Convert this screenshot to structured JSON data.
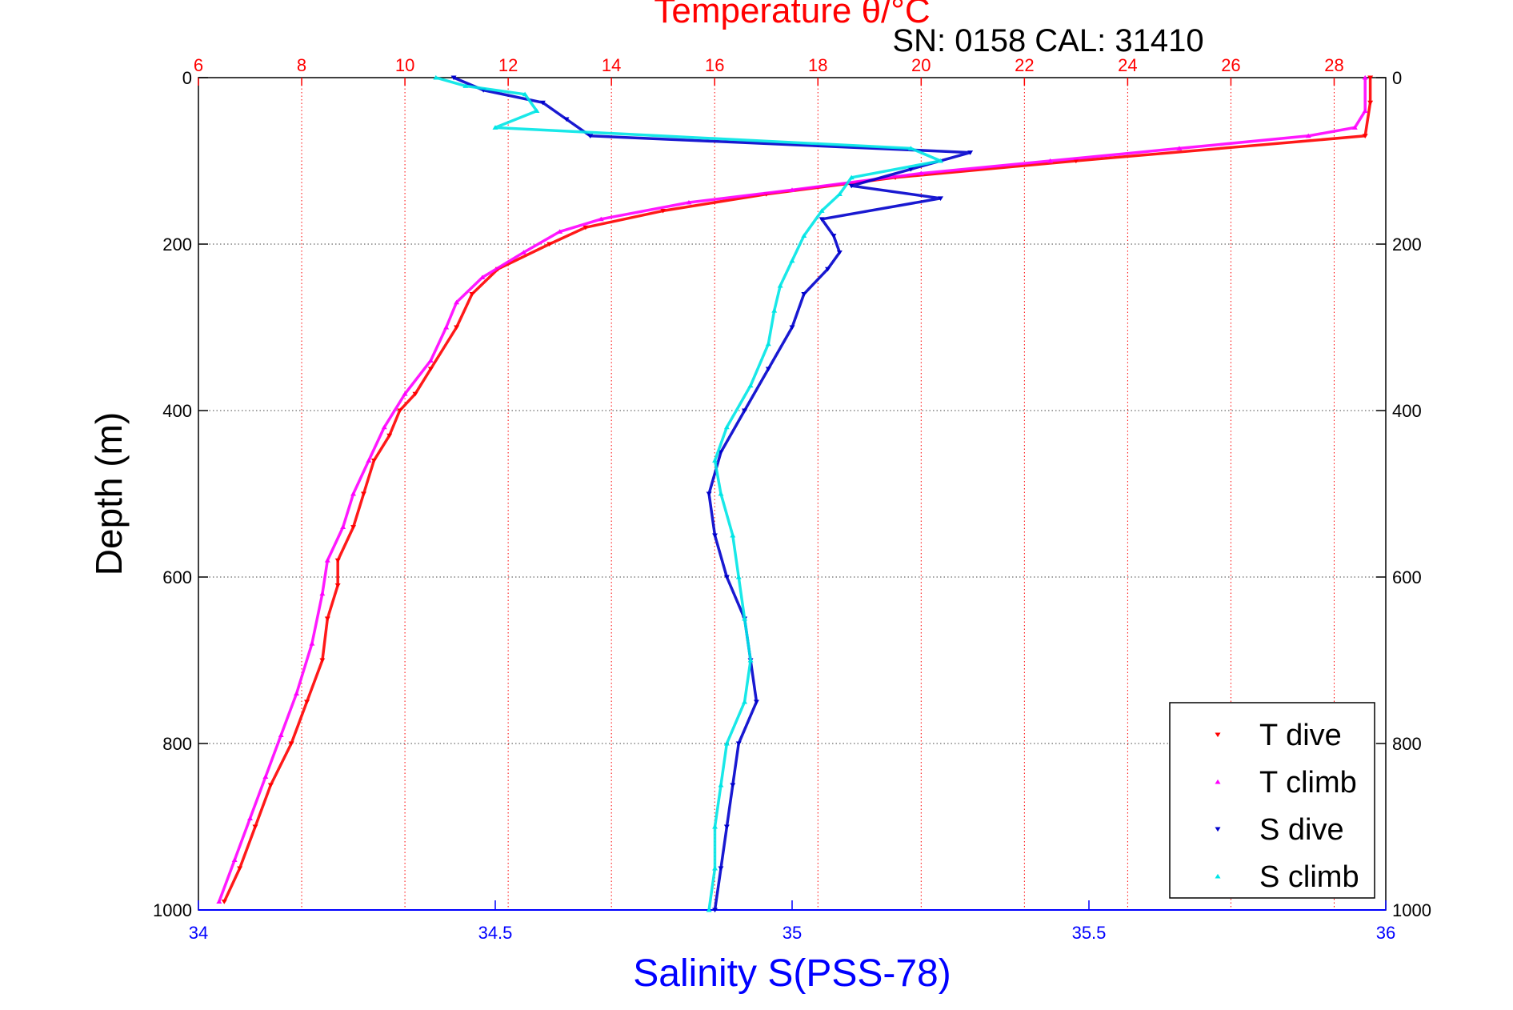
{
  "chart_data": {
    "type": "scatter",
    "title": "Temperature θ/°C",
    "annotation": "SN: 0158  CAL: 31410",
    "ylabel": "Depth (m)",
    "xlabel_bottom": "Salinity S(PSS-78)",
    "xlabel_top": "Temperature θ/°C",
    "ylim": [
      0,
      1000
    ],
    "y_reversed": true,
    "yticks": [
      0,
      200,
      400,
      600,
      800,
      1000
    ],
    "xlim_top": [
      6,
      29
    ],
    "xticks_top": [
      6,
      8,
      10,
      12,
      14,
      16,
      18,
      20,
      22,
      24,
      26,
      28
    ],
    "xlim_bottom": [
      34,
      36
    ],
    "xticks_bottom": [
      34,
      34.5,
      35,
      35.5,
      36
    ],
    "xtick_labels_bottom": [
      "34",
      "34.5",
      "35",
      "35.5",
      "36"
    ],
    "grid": true,
    "legend_position": "bottom-right",
    "colors": {
      "t_axis": "#ff0000",
      "s_axis": "#0000ff",
      "grid": "#444444"
    },
    "series": [
      {
        "name": "T dive",
        "axis": "top",
        "color": "#ff0000",
        "marker": "triangle-down",
        "points": [
          [
            28.7,
            0
          ],
          [
            28.7,
            30
          ],
          [
            28.6,
            70
          ],
          [
            23.0,
            100
          ],
          [
            19.5,
            120
          ],
          [
            17.0,
            140
          ],
          [
            15.0,
            160
          ],
          [
            13.5,
            180
          ],
          [
            12.8,
            200
          ],
          [
            11.8,
            230
          ],
          [
            11.3,
            260
          ],
          [
            11.0,
            300
          ],
          [
            10.5,
            350
          ],
          [
            10.2,
            380
          ],
          [
            9.9,
            400
          ],
          [
            9.7,
            430
          ],
          [
            9.4,
            460
          ],
          [
            9.2,
            500
          ],
          [
            9.0,
            540
          ],
          [
            8.7,
            580
          ],
          [
            8.7,
            610
          ],
          [
            8.5,
            650
          ],
          [
            8.4,
            700
          ],
          [
            8.1,
            750
          ],
          [
            7.8,
            800
          ],
          [
            7.4,
            850
          ],
          [
            7.1,
            900
          ],
          [
            6.8,
            950
          ],
          [
            6.5,
            990
          ]
        ]
      },
      {
        "name": "T climb",
        "axis": "top",
        "color": "#ff00ff",
        "marker": "triangle-up",
        "points": [
          [
            28.6,
            0
          ],
          [
            28.6,
            40
          ],
          [
            28.4,
            60
          ],
          [
            27.5,
            70
          ],
          [
            25.0,
            85
          ],
          [
            22.5,
            100
          ],
          [
            20.0,
            115
          ],
          [
            17.5,
            135
          ],
          [
            15.5,
            150
          ],
          [
            13.8,
            170
          ],
          [
            13.0,
            185
          ],
          [
            12.3,
            210
          ],
          [
            11.5,
            240
          ],
          [
            11.0,
            270
          ],
          [
            10.8,
            300
          ],
          [
            10.5,
            340
          ],
          [
            10.0,
            380
          ],
          [
            9.6,
            420
          ],
          [
            9.3,
            460
          ],
          [
            9.0,
            500
          ],
          [
            8.8,
            540
          ],
          [
            8.5,
            580
          ],
          [
            8.4,
            620
          ],
          [
            8.2,
            680
          ],
          [
            7.9,
            740
          ],
          [
            7.6,
            790
          ],
          [
            7.3,
            840
          ],
          [
            7.0,
            890
          ],
          [
            6.7,
            940
          ],
          [
            6.4,
            990
          ]
        ]
      },
      {
        "name": "S dive",
        "axis": "bottom",
        "color": "#0000cc",
        "marker": "triangle-down",
        "points": [
          [
            34.43,
            0
          ],
          [
            34.48,
            15
          ],
          [
            34.58,
            30
          ],
          [
            34.62,
            50
          ],
          [
            34.66,
            70
          ],
          [
            35.3,
            90
          ],
          [
            35.2,
            110
          ],
          [
            35.1,
            130
          ],
          [
            35.25,
            145
          ],
          [
            35.05,
            170
          ],
          [
            35.07,
            190
          ],
          [
            35.08,
            210
          ],
          [
            35.06,
            230
          ],
          [
            35.02,
            260
          ],
          [
            35.0,
            300
          ],
          [
            34.96,
            350
          ],
          [
            34.92,
            400
          ],
          [
            34.88,
            450
          ],
          [
            34.86,
            500
          ],
          [
            34.87,
            550
          ],
          [
            34.89,
            600
          ],
          [
            34.92,
            650
          ],
          [
            34.93,
            700
          ],
          [
            34.94,
            750
          ],
          [
            34.91,
            800
          ],
          [
            34.9,
            850
          ],
          [
            34.89,
            900
          ],
          [
            34.88,
            950
          ],
          [
            34.87,
            1000
          ]
        ]
      },
      {
        "name": "S climb",
        "axis": "bottom",
        "color": "#00e5e5",
        "marker": "triangle-up",
        "points": [
          [
            34.4,
            0
          ],
          [
            34.45,
            10
          ],
          [
            34.55,
            20
          ],
          [
            34.57,
            40
          ],
          [
            34.5,
            60
          ],
          [
            35.2,
            85
          ],
          [
            35.25,
            100
          ],
          [
            35.1,
            120
          ],
          [
            35.08,
            140
          ],
          [
            35.05,
            160
          ],
          [
            35.02,
            190
          ],
          [
            35.0,
            220
          ],
          [
            34.98,
            250
          ],
          [
            34.97,
            280
          ],
          [
            34.96,
            320
          ],
          [
            34.93,
            370
          ],
          [
            34.89,
            420
          ],
          [
            34.87,
            460
          ],
          [
            34.88,
            500
          ],
          [
            34.9,
            550
          ],
          [
            34.91,
            600
          ],
          [
            34.92,
            650
          ],
          [
            34.93,
            700
          ],
          [
            34.92,
            750
          ],
          [
            34.89,
            800
          ],
          [
            34.88,
            850
          ],
          [
            34.87,
            900
          ],
          [
            34.87,
            950
          ],
          [
            34.86,
            1000
          ]
        ]
      }
    ]
  }
}
